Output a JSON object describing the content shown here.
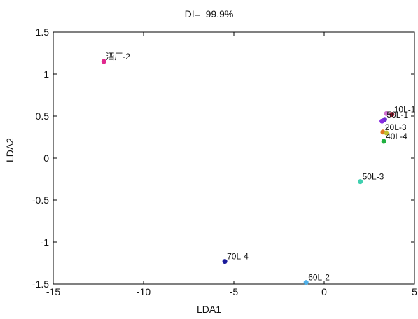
{
  "chart_data": {
    "type": "scatter",
    "title": "DI=  99.9%",
    "xlabel": "LDA1",
    "ylabel": "LDA2",
    "xlim": [
      -15,
      5
    ],
    "ylim": [
      -1.5,
      1.5
    ],
    "xticks": [
      "-15",
      "-10",
      "-5",
      "0",
      "5"
    ],
    "yticks": [
      "1.5",
      "1",
      "0.5",
      "0",
      "-0.5",
      "-1",
      "-1.5"
    ],
    "grid": false,
    "points": [
      {
        "label": "酒厂-2",
        "x": -12.2,
        "y": 1.15,
        "color": "#e0288e"
      },
      {
        "label": "10L-1",
        "x": 3.75,
        "y": 0.52,
        "color": "#a01830"
      },
      {
        "label": "",
        "x": 3.45,
        "y": 0.53,
        "color": "#d070d0"
      },
      {
        "label": "50L-1",
        "x": 3.35,
        "y": 0.46,
        "color": "#7030d0"
      },
      {
        "label": "",
        "x": 3.2,
        "y": 0.44,
        "color": "#8a2be2"
      },
      {
        "label": "20L-3",
        "x": 3.25,
        "y": 0.31,
        "color": "#e07820"
      },
      {
        "label": "",
        "x": 3.45,
        "y": 0.3,
        "color": "#c0c030"
      },
      {
        "label": "40L-4",
        "x": 3.3,
        "y": 0.2,
        "color": "#20b040"
      },
      {
        "label": "50L-3",
        "x": 2.0,
        "y": -0.28,
        "color": "#40d0b0"
      },
      {
        "label": "70L-4",
        "x": -5.5,
        "y": -1.23,
        "color": "#1a1a9a"
      },
      {
        "label": "60L-2",
        "x": -1.0,
        "y": -1.48,
        "color": "#50b0e8"
      }
    ]
  }
}
